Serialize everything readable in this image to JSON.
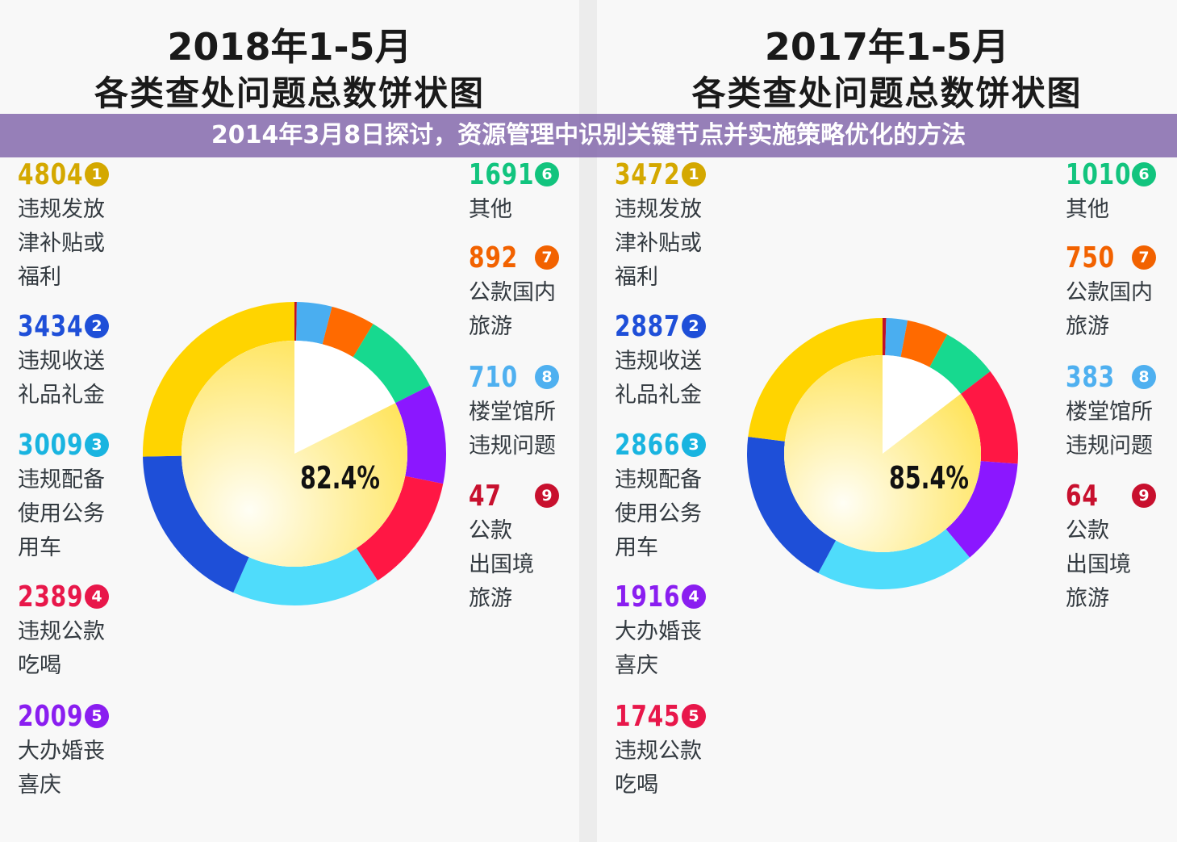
{
  "banner": {
    "text": "2014年3月8日探讨，资源管理中识别关键节点并实施策略优化的方法"
  },
  "chart_data": [
    {
      "type": "pie",
      "title": "2018年1-5月",
      "subtitle": "各类查处问题总数饼状图",
      "center_label": "82.4%",
      "center_fill_percent": 82.4,
      "categories": [
        {
          "rank": "1",
          "value": 4804,
          "label": "违规发放\n津补贴或\n福利",
          "color": "#d4a800",
          "slice_color": "#ffd400"
        },
        {
          "rank": "2",
          "value": 3434,
          "label": "违规收送\n礼品礼金",
          "color": "#1f4fd8",
          "slice_color": "#1e4fd8"
        },
        {
          "rank": "3",
          "value": 3009,
          "label": "违规配备\n使用公务\n用车",
          "color": "#19b4e0",
          "slice_color": "#4fdcfb"
        },
        {
          "rank": "4",
          "value": 2389,
          "label": "违规公款\n吃喝",
          "color": "#e8174a",
          "slice_color": "#ff1744"
        },
        {
          "rank": "5",
          "value": 2009,
          "label": "大办婚丧\n喜庆",
          "color": "#8a1ef0",
          "slice_color": "#8b17ff"
        },
        {
          "rank": "6",
          "value": 1691,
          "label": "其他",
          "color": "#12c47e",
          "slice_color": "#17d98f"
        },
        {
          "rank": "7",
          "value": 892,
          "label": "公款国内\n旅游",
          "color": "#f26200",
          "slice_color": "#ff6a00"
        },
        {
          "rank": "8",
          "value": 710,
          "label": "楼堂馆所\n违规问题",
          "color": "#4fb0f0",
          "slice_color": "#4aaef0"
        },
        {
          "rank": "9",
          "value": 47,
          "label": "公款\n出国境\n旅游",
          "color": "#c8102e",
          "slice_color": "#c0102a"
        }
      ]
    },
    {
      "type": "pie",
      "title": "2017年1-5月",
      "subtitle": "各类查处问题总数饼状图",
      "center_label": "85.4%",
      "center_fill_percent": 85.4,
      "categories": [
        {
          "rank": "1",
          "value": 3472,
          "label": "违规发放\n津补贴或\n福利",
          "color": "#d4a800",
          "slice_color": "#ffd400"
        },
        {
          "rank": "2",
          "value": 2887,
          "label": "违规收送\n礼品礼金",
          "color": "#1f4fd8",
          "slice_color": "#1e4fd8"
        },
        {
          "rank": "3",
          "value": 2866,
          "label": "违规配备\n使用公务\n用车",
          "color": "#19b4e0",
          "slice_color": "#4fdcfb"
        },
        {
          "rank": "4",
          "value": 1916,
          "label": "大办婚丧\n喜庆",
          "color": "#8a1ef0",
          "slice_color": "#8b17ff"
        },
        {
          "rank": "5",
          "value": 1745,
          "label": "违规公款\n吃喝",
          "color": "#e8174a",
          "slice_color": "#ff1744"
        },
        {
          "rank": "6",
          "value": 1010,
          "label": "其他",
          "color": "#12c47e",
          "slice_color": "#17d98f"
        },
        {
          "rank": "7",
          "value": 750,
          "label": "公款国内\n旅游",
          "color": "#f26200",
          "slice_color": "#ff6a00"
        },
        {
          "rank": "8",
          "value": 383,
          "label": "楼堂馆所\n违规问题",
          "color": "#4fb0f0",
          "slice_color": "#4aaef0"
        },
        {
          "rank": "9",
          "value": 64,
          "label": "公款\n出国境\n旅游",
          "color": "#c8102e",
          "slice_color": "#c0102a"
        }
      ]
    }
  ]
}
